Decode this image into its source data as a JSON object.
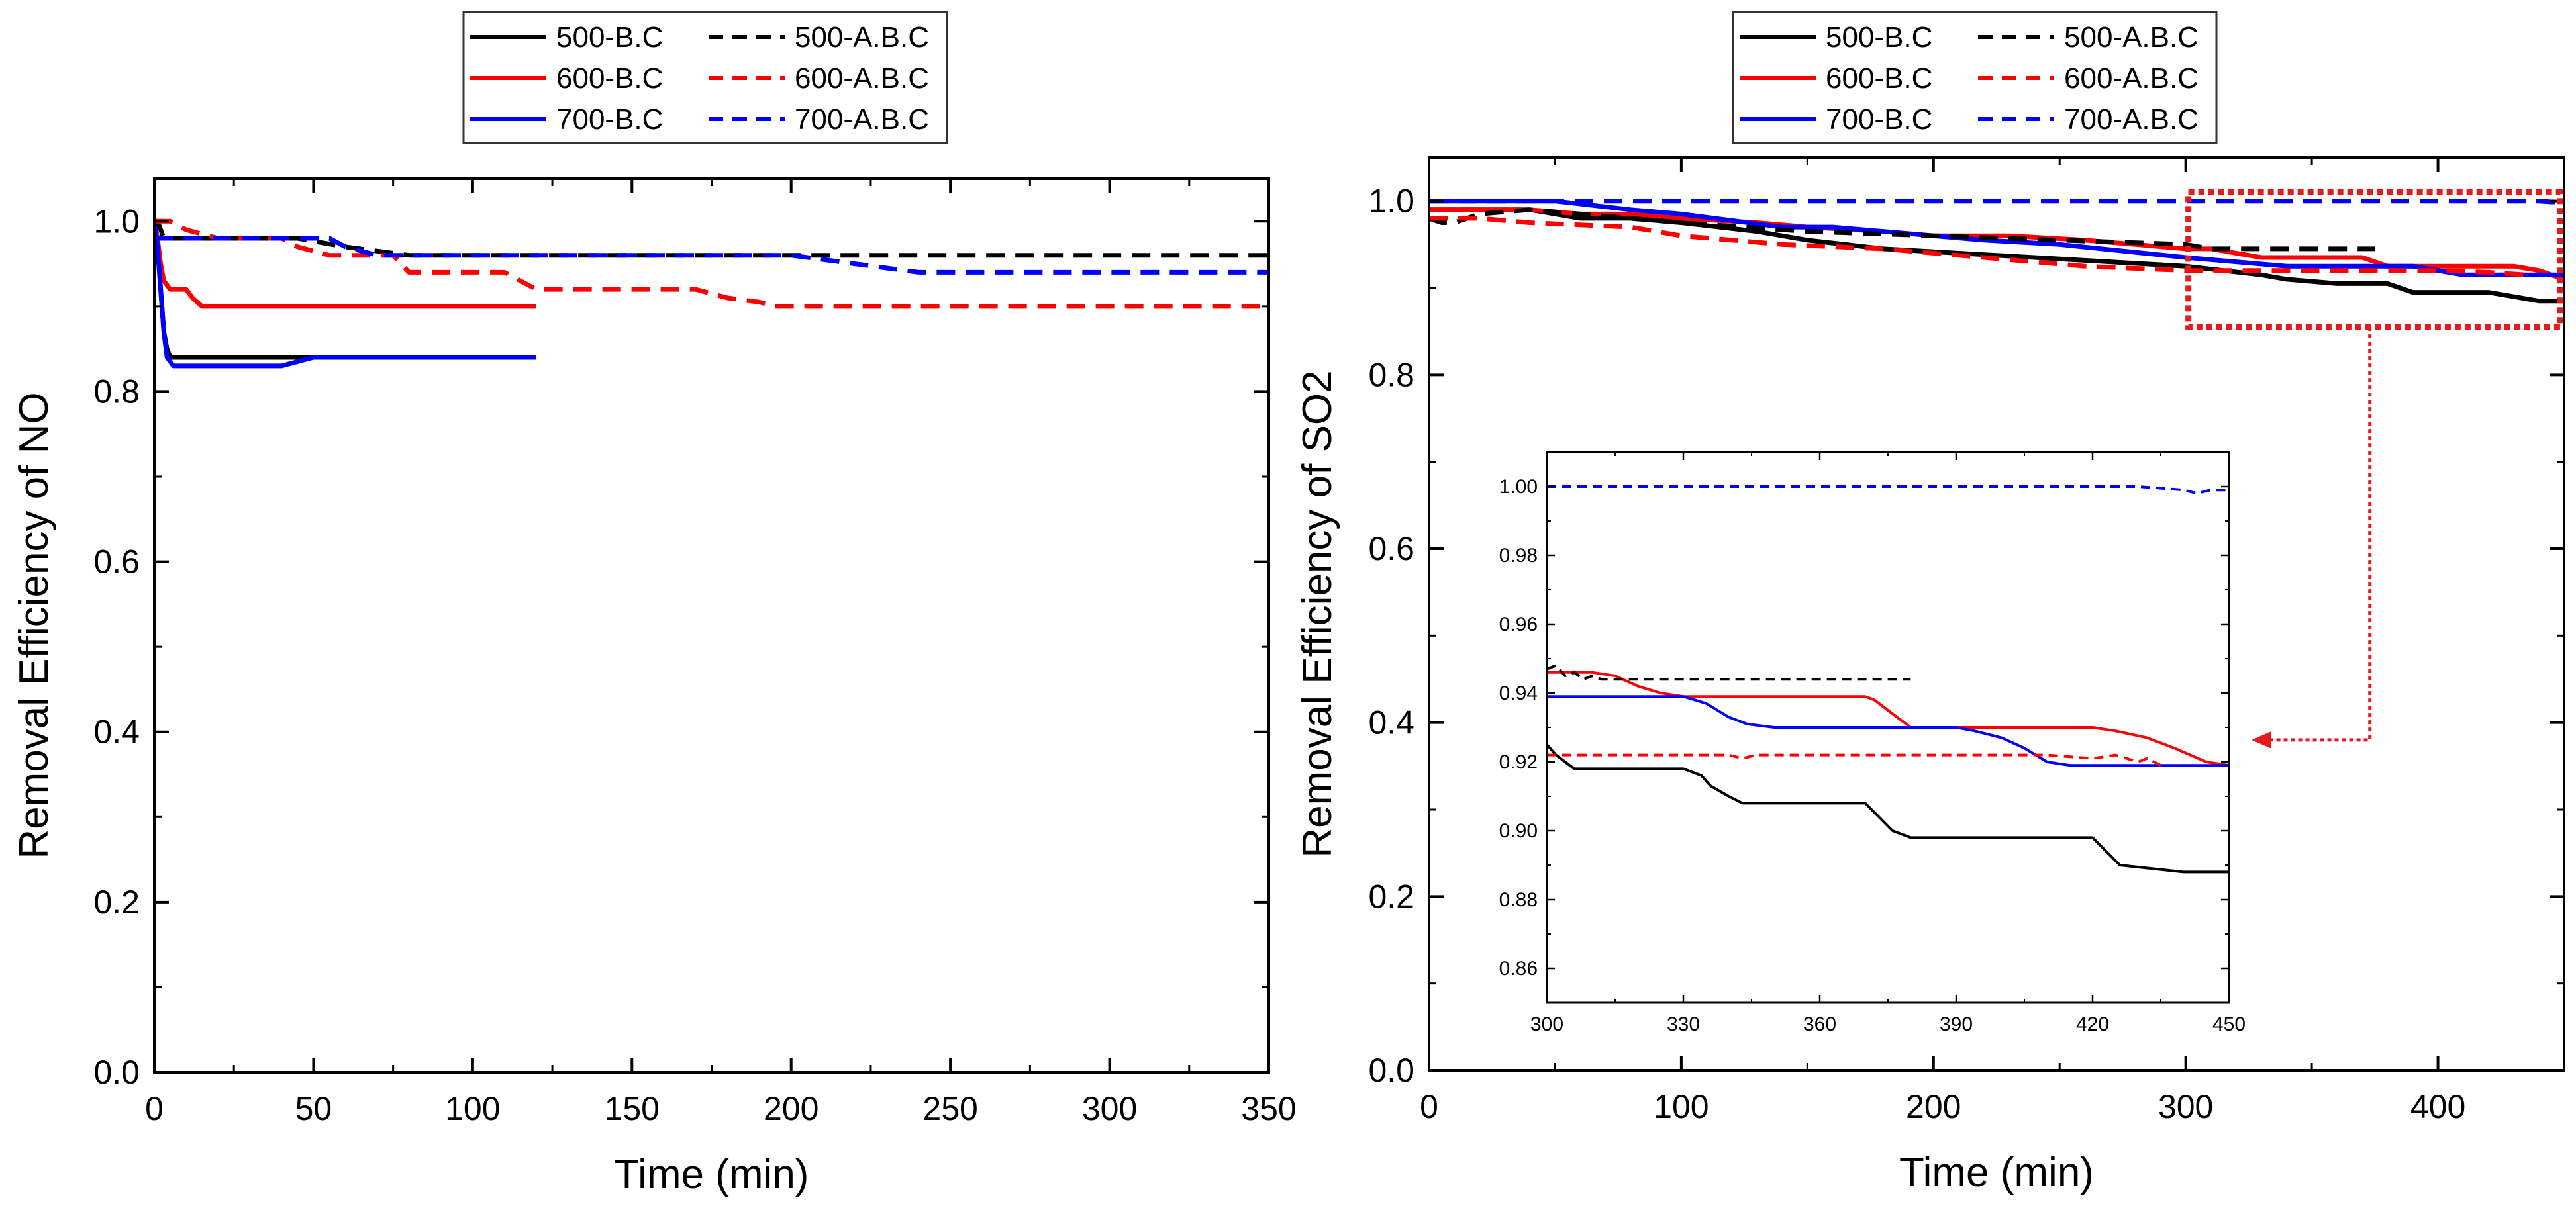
{
  "colors": {
    "500": "#000000",
    "600": "#ff0000",
    "700": "#0000ff",
    "zoom_box": "#e41a1c"
  },
  "legend": {
    "entries": [
      {
        "label": "500-B.C",
        "color": "#000000",
        "dash": "solid"
      },
      {
        "label": "500-A.B.C",
        "color": "#000000",
        "dash": "dashed"
      },
      {
        "label": "600-B.C",
        "color": "#ff0000",
        "dash": "solid"
      },
      {
        "label": "600-A.B.C",
        "color": "#ff0000",
        "dash": "dashed"
      },
      {
        "label": "700-B.C",
        "color": "#0000ff",
        "dash": "solid"
      },
      {
        "label": "700-A.B.C",
        "color": "#0000ff",
        "dash": "dashed"
      }
    ]
  },
  "chart_data": [
    {
      "type": "line",
      "title": "",
      "xlabel": "Time (min)",
      "ylabel": "Removal Efficiency of NO",
      "xlim": [
        0,
        350
      ],
      "ylim": [
        0,
        1.05
      ],
      "xticks": [
        0,
        50,
        100,
        150,
        200,
        250,
        300,
        350
      ],
      "yticks": [
        0.0,
        0.2,
        0.4,
        0.6,
        0.8,
        1.0
      ],
      "xtick_labels": [
        "0",
        "50",
        "100",
        "150",
        "200",
        "250",
        "300",
        "350"
      ],
      "ytick_labels": [
        "0.0",
        "0.2",
        "0.4",
        "0.6",
        "0.8",
        "1.0"
      ],
      "legend_position": "top",
      "grid": false,
      "series": [
        {
          "name": "500-B.C",
          "color": "#000000",
          "dash": "solid",
          "x": [
            0,
            1,
            2,
            3,
            4,
            5,
            120
          ],
          "y": [
            1.0,
            0.97,
            0.92,
            0.87,
            0.85,
            0.84,
            0.84
          ]
        },
        {
          "name": "600-B.C",
          "color": "#ff0000",
          "dash": "solid",
          "x": [
            0,
            1,
            2,
            3,
            5,
            10,
            12,
            15,
            120
          ],
          "y": [
            1.0,
            0.98,
            0.95,
            0.93,
            0.92,
            0.92,
            0.91,
            0.9,
            0.9
          ]
        },
        {
          "name": "700-B.C",
          "color": "#0000ff",
          "dash": "solid",
          "x": [
            0,
            1,
            2,
            3,
            4,
            6,
            40,
            45,
            50,
            55,
            120
          ],
          "y": [
            1.0,
            0.97,
            0.92,
            0.87,
            0.84,
            0.83,
            0.83,
            0.835,
            0.84,
            0.84,
            0.84
          ]
        },
        {
          "name": "500-A.B.C",
          "color": "#000000",
          "dash": "dashed",
          "x": [
            0,
            1,
            2,
            3,
            4,
            5,
            45,
            60,
            80,
            175,
            200,
            220,
            250,
            350
          ],
          "y": [
            1.0,
            1.0,
            0.99,
            0.98,
            0.98,
            0.98,
            0.98,
            0.97,
            0.96,
            0.96,
            0.96,
            0.96,
            0.96,
            0.96
          ]
        },
        {
          "name": "600-A.B.C",
          "color": "#ff0000",
          "dash": "dashed",
          "x": [
            0,
            5,
            10,
            20,
            40,
            45,
            55,
            60,
            75,
            80,
            100,
            110,
            115,
            120,
            170,
            180,
            190,
            195,
            350
          ],
          "y": [
            1.0,
            1.0,
            0.99,
            0.98,
            0.98,
            0.97,
            0.96,
            0.96,
            0.96,
            0.94,
            0.94,
            0.94,
            0.93,
            0.92,
            0.92,
            0.91,
            0.905,
            0.9,
            0.9
          ]
        },
        {
          "name": "700-A.B.C",
          "color": "#0000ff",
          "dash": "dashed",
          "x": [
            0,
            10,
            20,
            50,
            55,
            60,
            65,
            70,
            100,
            150,
            200,
            210,
            220,
            230,
            240,
            350
          ],
          "y": [
            0.98,
            0.98,
            0.98,
            0.98,
            0.98,
            0.97,
            0.965,
            0.96,
            0.96,
            0.96,
            0.96,
            0.955,
            0.95,
            0.945,
            0.94,
            0.94
          ]
        }
      ]
    },
    {
      "type": "line",
      "title": "",
      "xlabel": "Time (min)",
      "ylabel": "Removal Efficiency of SO2",
      "xlim": [
        0,
        450
      ],
      "ylim": [
        0,
        1.05
      ],
      "xticks": [
        0,
        100,
        200,
        300,
        400
      ],
      "yticks": [
        0.0,
        0.2,
        0.4,
        0.6,
        0.8,
        1.0
      ],
      "xtick_labels": [
        "0",
        "100",
        "200",
        "300",
        "400"
      ],
      "ytick_labels": [
        "0.0",
        "0.2",
        "0.4",
        "0.6",
        "0.8",
        "1.0"
      ],
      "legend_position": "top",
      "grid": false,
      "zoom_region": {
        "x": [
          300,
          450
        ],
        "y": [
          0.855,
          1.01
        ]
      },
      "series": [
        {
          "name": "500-B.C",
          "color": "#000000",
          "dash": "solid",
          "x": [
            0,
            10,
            20,
            40,
            60,
            80,
            100,
            130,
            150,
            180,
            210,
            240,
            270,
            300,
            330,
            340,
            360,
            380,
            390,
            420,
            430,
            440,
            450
          ],
          "y": [
            0.99,
            0.99,
            0.99,
            0.99,
            0.98,
            0.98,
            0.975,
            0.965,
            0.955,
            0.945,
            0.94,
            0.935,
            0.93,
            0.925,
            0.915,
            0.91,
            0.905,
            0.905,
            0.895,
            0.895,
            0.89,
            0.885,
            0.885
          ]
        },
        {
          "name": "600-B.C",
          "color": "#ff0000",
          "dash": "solid",
          "x": [
            0,
            20,
            40,
            60,
            80,
            100,
            130,
            150,
            180,
            200,
            230,
            260,
            280,
            300,
            310,
            330,
            370,
            380,
            390,
            430,
            440,
            450
          ],
          "y": [
            0.99,
            0.99,
            0.99,
            0.985,
            0.985,
            0.98,
            0.975,
            0.97,
            0.965,
            0.96,
            0.96,
            0.955,
            0.95,
            0.945,
            0.945,
            0.935,
            0.935,
            0.925,
            0.925,
            0.925,
            0.92,
            0.91
          ]
        },
        {
          "name": "700-B.C",
          "color": "#0000ff",
          "dash": "solid",
          "x": [
            0,
            50,
            80,
            100,
            140,
            160,
            200,
            220,
            250,
            300,
            340,
            390,
            400,
            410,
            450
          ],
          "y": [
            1.0,
            1.0,
            0.99,
            0.985,
            0.97,
            0.97,
            0.96,
            0.955,
            0.95,
            0.935,
            0.925,
            0.925,
            0.92,
            0.915,
            0.915
          ]
        },
        {
          "name": "500-A.B.C",
          "color": "#000000",
          "dash": "dashed",
          "x": [
            0,
            5,
            10,
            20,
            40,
            60,
            100,
            150,
            200,
            250,
            300,
            310,
            375
          ],
          "y": [
            0.98,
            0.975,
            0.975,
            0.985,
            0.99,
            0.985,
            0.975,
            0.965,
            0.96,
            0.955,
            0.95,
            0.945,
            0.945
          ]
        },
        {
          "name": "600-A.B.C",
          "color": "#ff0000",
          "dash": "dashed",
          "x": [
            0,
            20,
            40,
            80,
            100,
            140,
            180,
            220,
            260,
            300,
            320,
            360,
            400,
            420,
            430,
            435
          ],
          "y": [
            0.98,
            0.98,
            0.975,
            0.97,
            0.96,
            0.95,
            0.945,
            0.935,
            0.925,
            0.92,
            0.92,
            0.92,
            0.92,
            0.918,
            0.916,
            0.915
          ]
        },
        {
          "name": "700-A.B.C",
          "color": "#0000ff",
          "dash": "dashed",
          "x": [
            0,
            100,
            200,
            300,
            400,
            440,
            445,
            450
          ],
          "y": [
            1.0,
            1.0,
            1.0,
            1.0,
            1.0,
            1.0,
            0.999,
            0.999
          ]
        }
      ]
    },
    {
      "type": "line",
      "title": "",
      "xlabel": "",
      "ylabel": "",
      "xlim": [
        300,
        450
      ],
      "ylim": [
        0.85,
        1.01
      ],
      "xticks": [
        300,
        330,
        360,
        390,
        420,
        450
      ],
      "yticks": [
        0.86,
        0.88,
        0.9,
        0.92,
        0.94,
        0.96,
        0.98,
        1.0
      ],
      "xtick_labels": [
        "300",
        "330",
        "360",
        "390",
        "420",
        "450"
      ],
      "ytick_labels": [
        "0.86",
        "0.88",
        "0.90",
        "0.92",
        "0.94",
        "0.96",
        "0.98",
        "1.00"
      ],
      "grid": false,
      "series": [
        {
          "name": "500-B.C",
          "color": "#000000",
          "dash": "solid",
          "x": [
            300,
            302,
            304,
            306,
            330,
            334,
            336,
            340,
            343,
            346,
            370,
            373,
            376,
            380,
            420,
            423,
            426,
            440,
            450
          ],
          "y": [
            0.925,
            0.922,
            0.92,
            0.918,
            0.918,
            0.916,
            0.913,
            0.91,
            0.908,
            0.908,
            0.908,
            0.904,
            0.9,
            0.898,
            0.898,
            0.894,
            0.89,
            0.888,
            0.888
          ]
        },
        {
          "name": "600-B.C",
          "color": "#ff0000",
          "dash": "solid",
          "x": [
            300,
            310,
            315,
            320,
            325,
            330,
            370,
            372,
            375,
            380,
            420,
            425,
            432,
            438,
            445,
            450
          ],
          "y": [
            0.946,
            0.946,
            0.945,
            0.942,
            0.94,
            0.939,
            0.939,
            0.938,
            0.935,
            0.93,
            0.93,
            0.929,
            0.927,
            0.924,
            0.92,
            0.919
          ]
        },
        {
          "name": "700-B.C",
          "color": "#0000ff",
          "dash": "solid",
          "x": [
            300,
            330,
            335,
            340,
            344,
            350,
            390,
            394,
            400,
            405,
            410,
            415,
            450
          ],
          "y": [
            0.939,
            0.939,
            0.937,
            0.933,
            0.931,
            0.93,
            0.93,
            0.929,
            0.927,
            0.924,
            0.92,
            0.919,
            0.919
          ]
        },
        {
          "name": "500-A.B.C",
          "color": "#000000",
          "dash": "dashed",
          "x": [
            300,
            302,
            304,
            306,
            308,
            310,
            312,
            380
          ],
          "y": [
            0.947,
            0.948,
            0.945,
            0.946,
            0.944,
            0.945,
            0.944,
            0.944
          ]
        },
        {
          "name": "600-A.B.C",
          "color": "#ff0000",
          "dash": "dashed",
          "x": [
            300,
            340,
            343,
            346,
            400,
            410,
            420,
            425,
            430,
            432,
            435
          ],
          "y": [
            0.922,
            0.922,
            0.921,
            0.922,
            0.922,
            0.922,
            0.921,
            0.922,
            0.92,
            0.921,
            0.919
          ]
        },
        {
          "name": "700-A.B.C",
          "color": "#0000ff",
          "dash": "dashed",
          "x": [
            300,
            400,
            430,
            440,
            443,
            446,
            450
          ],
          "y": [
            1.0,
            1.0,
            1.0,
            0.999,
            0.998,
            0.999,
            0.999
          ]
        }
      ]
    }
  ]
}
